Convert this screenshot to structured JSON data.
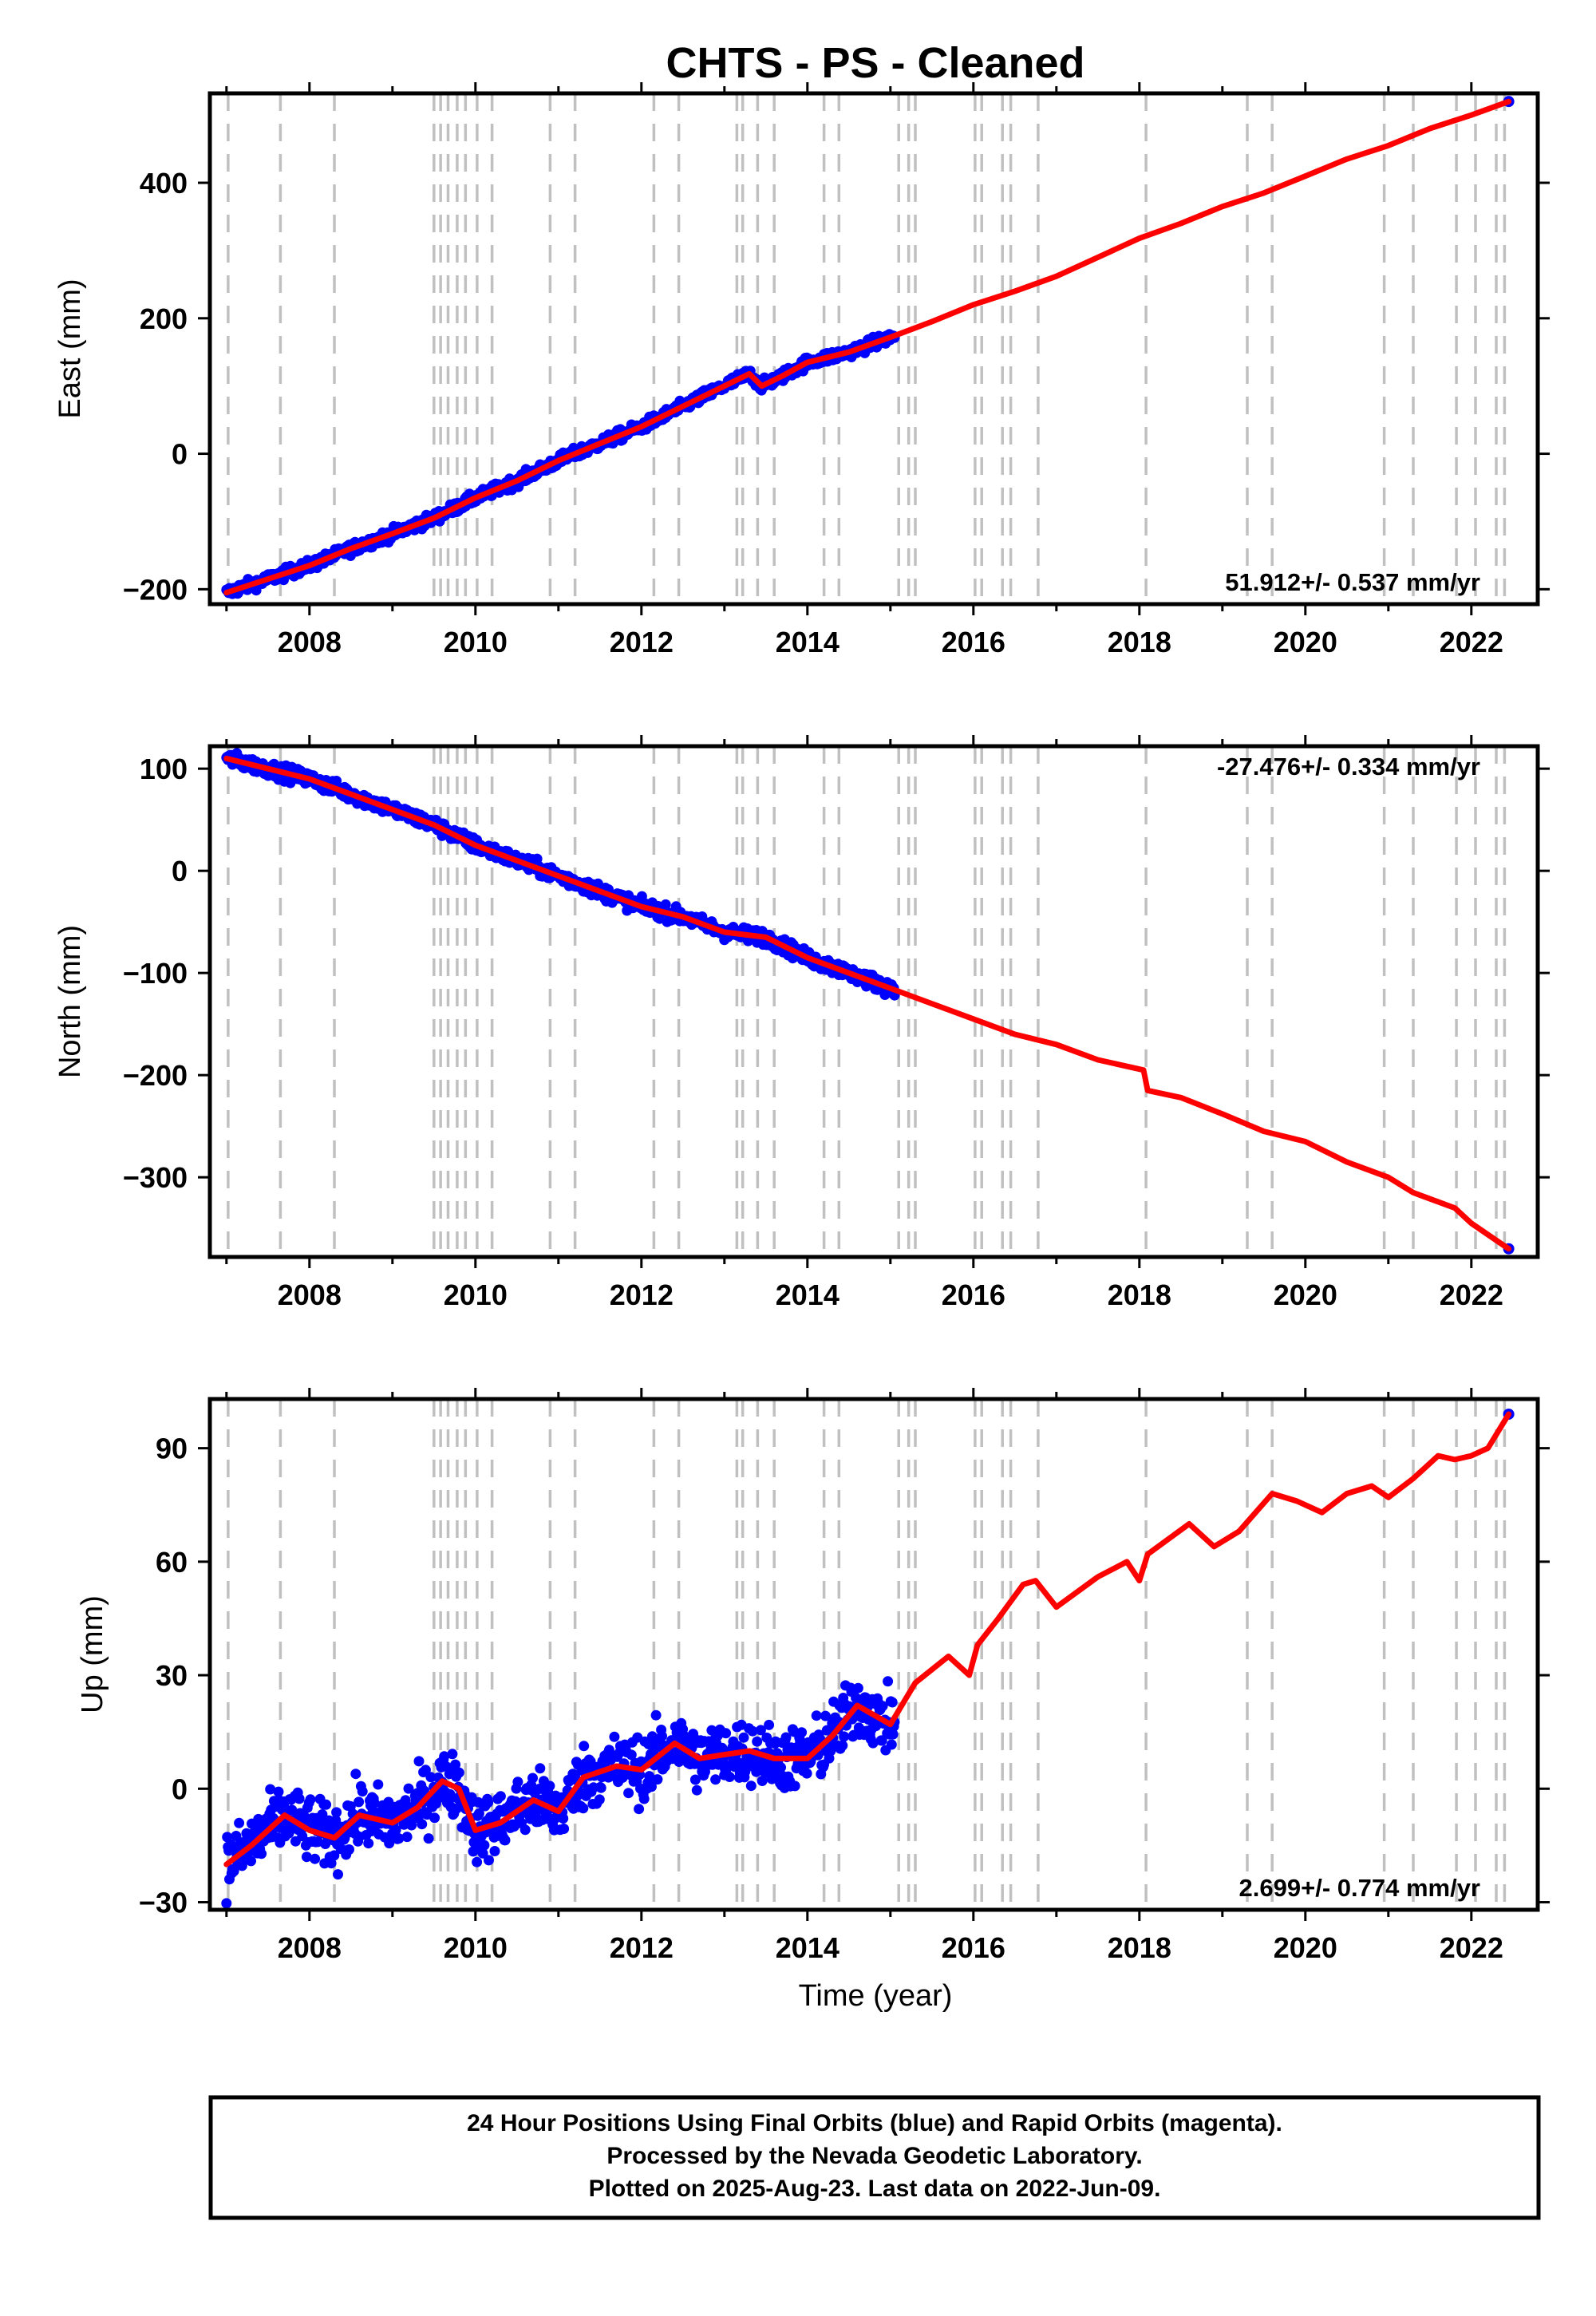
{
  "title": "CHTS  - PS - Cleaned",
  "xlabel": "Time (year)",
  "footer": {
    "line1": "24 Hour Positions Using Final Orbits (blue) and Rapid Orbits (magenta).",
    "line2": "Processed by the Nevada Geodetic Laboratory.",
    "line3": "Plotted on 2025-Aug-23. Last data on 2022-Jun-09."
  },
  "colors": {
    "data": "#0000ff",
    "model": "#ff0000",
    "breaks": "#c0c0c0",
    "frame": "#000000"
  },
  "chart_data": [
    {
      "type": "scatter",
      "name": "east",
      "ylabel": "East (mm)",
      "rate_label": "51.912+/- 0.537 mm/yr",
      "xlim": [
        2006.8,
        2022.8
      ],
      "ylim": [
        -222,
        532
      ],
      "x_ticks": [
        2008,
        2010,
        2012,
        2014,
        2016,
        2018,
        2020,
        2022
      ],
      "y_ticks": [
        -200,
        0,
        200,
        400
      ],
      "model_points": [
        [
          2007.0,
          -205
        ],
        [
          2007.5,
          -185
        ],
        [
          2008.0,
          -165
        ],
        [
          2008.5,
          -140
        ],
        [
          2009.0,
          -118
        ],
        [
          2009.5,
          -95
        ],
        [
          2010.0,
          -65
        ],
        [
          2010.5,
          -40
        ],
        [
          2011.0,
          -10
        ],
        [
          2011.5,
          15
        ],
        [
          2012.0,
          40
        ],
        [
          2012.5,
          70
        ],
        [
          2013.0,
          100
        ],
        [
          2013.3,
          118
        ],
        [
          2013.45,
          100
        ],
        [
          2013.7,
          115
        ],
        [
          2014.0,
          135
        ],
        [
          2014.5,
          150
        ],
        [
          2015.0,
          172
        ],
        [
          2015.5,
          195
        ],
        [
          2016.0,
          220
        ],
        [
          2016.5,
          240
        ],
        [
          2017.0,
          262
        ],
        [
          2017.5,
          290
        ],
        [
          2018.0,
          318
        ],
        [
          2018.5,
          340
        ],
        [
          2019.0,
          365
        ],
        [
          2019.5,
          385
        ],
        [
          2020.0,
          410
        ],
        [
          2020.5,
          435
        ],
        [
          2021.0,
          455
        ],
        [
          2021.5,
          480
        ],
        [
          2022.0,
          500
        ],
        [
          2022.45,
          520
        ]
      ],
      "data_end": 2015.05,
      "data_scatter": 6,
      "last_point": [
        2022.45,
        520
      ]
    },
    {
      "type": "scatter",
      "name": "north",
      "ylabel": "North (mm)",
      "rate_label": "-27.476+/- 0.334 mm/yr",
      "xlim": [
        2006.8,
        2022.8
      ],
      "ylim": [
        -378,
        122
      ],
      "x_ticks": [
        2008,
        2010,
        2012,
        2014,
        2016,
        2018,
        2020,
        2022
      ],
      "y_ticks": [
        -300,
        -200,
        -100,
        0,
        100
      ],
      "model_points": [
        [
          2007.0,
          110
        ],
        [
          2007.5,
          100
        ],
        [
          2008.0,
          90
        ],
        [
          2008.5,
          75
        ],
        [
          2009.0,
          60
        ],
        [
          2009.5,
          45
        ],
        [
          2010.0,
          25
        ],
        [
          2010.5,
          10
        ],
        [
          2011.0,
          -5
        ],
        [
          2011.5,
          -20
        ],
        [
          2012.0,
          -35
        ],
        [
          2012.5,
          -45
        ],
        [
          2013.0,
          -60
        ],
        [
          2013.5,
          -65
        ],
        [
          2014.0,
          -85
        ],
        [
          2014.5,
          -100
        ],
        [
          2015.0,
          -115
        ],
        [
          2015.5,
          -130
        ],
        [
          2016.0,
          -145
        ],
        [
          2016.5,
          -160
        ],
        [
          2017.0,
          -170
        ],
        [
          2017.5,
          -185
        ],
        [
          2018.05,
          -195
        ],
        [
          2018.1,
          -215
        ],
        [
          2018.5,
          -222
        ],
        [
          2019.0,
          -238
        ],
        [
          2019.5,
          -255
        ],
        [
          2020.0,
          -265
        ],
        [
          2020.5,
          -285
        ],
        [
          2021.0,
          -300
        ],
        [
          2021.3,
          -315
        ],
        [
          2021.8,
          -330
        ],
        [
          2022.0,
          -345
        ],
        [
          2022.45,
          -370
        ]
      ],
      "data_end": 2015.05,
      "data_scatter": 5,
      "last_point": [
        2022.45,
        -370
      ]
    },
    {
      "type": "scatter",
      "name": "up",
      "ylabel": "Up (mm)",
      "rate_label": "2.699+/- 0.774 mm/yr",
      "xlim": [
        2006.8,
        2022.8
      ],
      "ylim": [
        -32,
        103
      ],
      "x_ticks": [
        2008,
        2010,
        2012,
        2014,
        2016,
        2018,
        2020,
        2022
      ],
      "y_ticks": [
        -30,
        0,
        30,
        60,
        90
      ],
      "model_points": [
        [
          2007.0,
          -20
        ],
        [
          2007.3,
          -15
        ],
        [
          2007.7,
          -7
        ],
        [
          2008.0,
          -11
        ],
        [
          2008.3,
          -13
        ],
        [
          2008.6,
          -7
        ],
        [
          2009.0,
          -9
        ],
        [
          2009.3,
          -5
        ],
        [
          2009.6,
          2
        ],
        [
          2009.8,
          0
        ],
        [
          2010.0,
          -11
        ],
        [
          2010.3,
          -9
        ],
        [
          2010.7,
          -3
        ],
        [
          2011.0,
          -6
        ],
        [
          2011.3,
          3
        ],
        [
          2011.7,
          6
        ],
        [
          2012.0,
          5
        ],
        [
          2012.4,
          12
        ],
        [
          2012.7,
          8
        ],
        [
          2013.0,
          9
        ],
        [
          2013.3,
          10
        ],
        [
          2013.6,
          8
        ],
        [
          2014.0,
          8
        ],
        [
          2014.3,
          14
        ],
        [
          2014.6,
          22
        ],
        [
          2015.0,
          17
        ],
        [
          2015.3,
          28
        ],
        [
          2015.7,
          35
        ],
        [
          2015.95,
          30
        ],
        [
          2016.05,
          38
        ],
        [
          2016.3,
          45
        ],
        [
          2016.6,
          54
        ],
        [
          2016.75,
          55
        ],
        [
          2017.0,
          48
        ],
        [
          2017.5,
          56
        ],
        [
          2017.85,
          60
        ],
        [
          2018.0,
          55
        ],
        [
          2018.1,
          62
        ],
        [
          2018.6,
          70
        ],
        [
          2018.9,
          64
        ],
        [
          2019.2,
          68
        ],
        [
          2019.6,
          78
        ],
        [
          2019.9,
          76
        ],
        [
          2020.2,
          73
        ],
        [
          2020.5,
          78
        ],
        [
          2020.8,
          80
        ],
        [
          2021.0,
          77
        ],
        [
          2021.3,
          82
        ],
        [
          2021.6,
          88
        ],
        [
          2021.8,
          87
        ],
        [
          2022.0,
          88
        ],
        [
          2022.2,
          90
        ],
        [
          2022.45,
          99
        ]
      ],
      "data_end": 2015.05,
      "data_scatter": 6,
      "last_point": [
        2022.45,
        99
      ]
    }
  ],
  "break_years": [
    2007.02,
    2007.65,
    2008.3,
    2009.5,
    2009.58,
    2009.67,
    2009.78,
    2009.88,
    2010.02,
    2010.2,
    2010.9,
    2011.2,
    2012.15,
    2012.45,
    2013.15,
    2013.22,
    2013.4,
    2013.6,
    2014.2,
    2014.38,
    2015.1,
    2015.22,
    2015.3,
    2016.02,
    2016.1,
    2016.35,
    2016.45,
    2016.78,
    2018.08,
    2019.3,
    2019.6,
    2020.95,
    2021.3,
    2021.82,
    2022.05,
    2022.3,
    2022.4
  ]
}
